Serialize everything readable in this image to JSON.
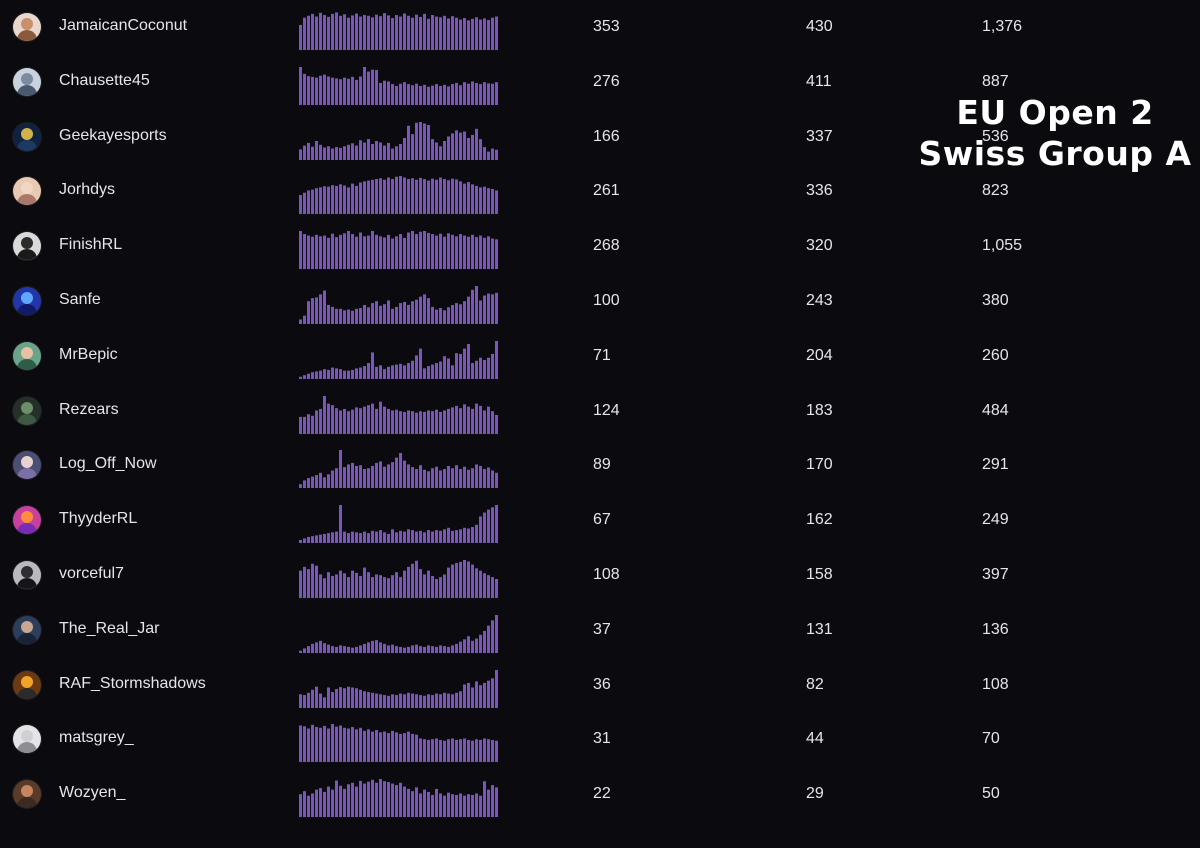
{
  "overlay": {
    "line1": "EU Open 2",
    "line2": "Swiss Group A"
  },
  "colors": {
    "background": "#0b0b0f",
    "bar": "#7b57bd",
    "text": "#e6e6ea"
  },
  "rows": [
    {
      "username": "JamaicanCoconut",
      "avatar": {
        "bg": "#e9d6cc",
        "face": "#c98f6a",
        "body": "#8a5a3c"
      },
      "col1": "353",
      "col2": "430",
      "col3": "1,376",
      "trend": [
        0.66,
        0.85,
        0.9,
        0.95,
        0.88,
        0.98,
        0.92,
        0.87,
        0.95,
        0.99,
        0.9,
        0.94,
        0.85,
        0.91,
        0.96,
        0.88,
        0.92,
        0.9,
        0.86,
        0.93,
        0.89,
        0.97,
        0.91,
        0.84,
        0.92,
        0.88,
        0.96,
        0.9,
        0.85,
        0.93,
        0.87,
        0.95,
        0.82,
        0.92,
        0.88,
        0.86,
        0.9,
        0.83,
        0.89,
        0.85,
        0.8,
        0.84,
        0.78,
        0.82,
        0.86,
        0.8,
        0.83,
        0.79,
        0.85,
        0.88
      ]
    },
    {
      "username": "Chausette45",
      "avatar": {
        "bg": "#c9d3e0",
        "face": "#7d8aa0",
        "body": "#4a5870"
      },
      "col1": "276",
      "col2": "411",
      "col3": "887",
      "trend": [
        1.0,
        0.82,
        0.76,
        0.74,
        0.72,
        0.77,
        0.8,
        0.75,
        0.72,
        0.7,
        0.68,
        0.72,
        0.69,
        0.74,
        0.66,
        0.75,
        1.0,
        0.88,
        0.93,
        0.92,
        0.58,
        0.64,
        0.62,
        0.55,
        0.5,
        0.56,
        0.6,
        0.55,
        0.52,
        0.56,
        0.5,
        0.53,
        0.48,
        0.51,
        0.55,
        0.5,
        0.53,
        0.49,
        0.55,
        0.58,
        0.52,
        0.6,
        0.56,
        0.62,
        0.58,
        0.55,
        0.6,
        0.57,
        0.56,
        0.6
      ]
    },
    {
      "username": "Geekayesports",
      "avatar": {
        "bg": "#0f2340",
        "face": "#d4b24a",
        "body": "#1e3a64"
      },
      "col1": "166",
      "col2": "337",
      "col3": "536",
      "trend": [
        0.28,
        0.38,
        0.45,
        0.35,
        0.5,
        0.4,
        0.33,
        0.36,
        0.3,
        0.34,
        0.32,
        0.36,
        0.4,
        0.44,
        0.38,
        0.52,
        0.46,
        0.55,
        0.42,
        0.5,
        0.46,
        0.38,
        0.45,
        0.3,
        0.36,
        0.42,
        0.58,
        0.9,
        0.68,
        0.98,
        1.0,
        0.96,
        0.92,
        0.55,
        0.46,
        0.36,
        0.5,
        0.62,
        0.7,
        0.78,
        0.72,
        0.75,
        0.58,
        0.66,
        0.82,
        0.55,
        0.34,
        0.22,
        0.3,
        0.27
      ]
    },
    {
      "username": "Jorhdys",
      "avatar": {
        "bg": "#e8c9b2",
        "face": "#f1d7c3",
        "body": "#a9786a"
      },
      "col1": "261",
      "col2": "336",
      "col3": "823",
      "trend": [
        0.5,
        0.56,
        0.62,
        0.64,
        0.68,
        0.7,
        0.73,
        0.72,
        0.76,
        0.74,
        0.78,
        0.75,
        0.7,
        0.8,
        0.74,
        0.83,
        0.86,
        0.88,
        0.9,
        0.92,
        0.94,
        0.9,
        0.96,
        0.92,
        0.98,
        1.0,
        0.96,
        0.92,
        0.94,
        0.9,
        0.95,
        0.92,
        0.88,
        0.93,
        0.9,
        0.96,
        0.92,
        0.89,
        0.93,
        0.91,
        0.86,
        0.8,
        0.84,
        0.78,
        0.74,
        0.7,
        0.72,
        0.68,
        0.66,
        0.62
      ]
    },
    {
      "username": "FinishRL",
      "avatar": {
        "bg": "#d9d9d9",
        "face": "#2b2b2b",
        "body": "#1a1a1a"
      },
      "col1": "268",
      "col2": "320",
      "col3": "1,055",
      "trend": [
        1.0,
        0.92,
        0.88,
        0.85,
        0.9,
        0.86,
        0.88,
        0.82,
        0.93,
        0.84,
        0.9,
        0.94,
        1.0,
        0.92,
        0.85,
        0.96,
        0.86,
        0.88,
        1.0,
        0.9,
        0.86,
        0.83,
        0.9,
        0.8,
        0.86,
        0.92,
        0.82,
        0.96,
        1.0,
        0.92,
        0.98,
        1.0,
        0.95,
        0.92,
        0.88,
        0.93,
        0.85,
        0.94,
        0.9,
        0.86,
        0.92,
        0.88,
        0.85,
        0.9,
        0.84,
        0.88,
        0.82,
        0.86,
        0.8,
        0.78
      ]
    },
    {
      "username": "Sanfe",
      "avatar": {
        "bg": "#2336a8",
        "face": "#5fa7ff",
        "body": "#111a66"
      },
      "col1": "100",
      "col2": "243",
      "col3": "380",
      "trend": [
        0.12,
        0.22,
        0.6,
        0.68,
        0.7,
        0.78,
        0.88,
        0.5,
        0.45,
        0.4,
        0.4,
        0.36,
        0.38,
        0.35,
        0.4,
        0.42,
        0.5,
        0.44,
        0.55,
        0.6,
        0.48,
        0.52,
        0.62,
        0.4,
        0.45,
        0.55,
        0.58,
        0.5,
        0.6,
        0.64,
        0.72,
        0.78,
        0.68,
        0.45,
        0.38,
        0.42,
        0.36,
        0.44,
        0.5,
        0.55,
        0.52,
        0.6,
        0.72,
        0.9,
        1.0,
        0.62,
        0.75,
        0.8,
        0.78,
        0.82
      ]
    },
    {
      "username": "MrBepic",
      "avatar": {
        "bg": "#6aa58a",
        "face": "#e6c1a3",
        "body": "#2f5c47"
      },
      "col1": "71",
      "col2": "204",
      "col3": "260",
      "trend": [
        0.06,
        0.1,
        0.14,
        0.18,
        0.2,
        0.22,
        0.26,
        0.24,
        0.3,
        0.28,
        0.26,
        0.22,
        0.22,
        0.24,
        0.28,
        0.3,
        0.34,
        0.42,
        0.7,
        0.32,
        0.36,
        0.26,
        0.32,
        0.36,
        0.38,
        0.4,
        0.36,
        0.42,
        0.48,
        0.62,
        0.8,
        0.28,
        0.34,
        0.38,
        0.42,
        0.46,
        0.6,
        0.54,
        0.36,
        0.68,
        0.66,
        0.8,
        0.92,
        0.42,
        0.48,
        0.56,
        0.5,
        0.56,
        0.66,
        1.0
      ]
    },
    {
      "username": "Rezears",
      "avatar": {
        "bg": "#243028",
        "face": "#6b8f6a",
        "body": "#3f5a42"
      },
      "col1": "124",
      "col2": "183",
      "col3": "484",
      "trend": [
        0.45,
        0.45,
        0.52,
        0.48,
        0.62,
        0.66,
        1.0,
        0.8,
        0.76,
        0.68,
        0.62,
        0.66,
        0.6,
        0.64,
        0.7,
        0.68,
        0.72,
        0.76,
        0.8,
        0.66,
        0.85,
        0.72,
        0.66,
        0.62,
        0.64,
        0.6,
        0.58,
        0.62,
        0.6,
        0.56,
        0.6,
        0.58,
        0.62,
        0.6,
        0.64,
        0.58,
        0.62,
        0.66,
        0.7,
        0.74,
        0.68,
        0.78,
        0.72,
        0.66,
        0.8,
        0.74,
        0.62,
        0.72,
        0.6,
        0.5
      ]
    },
    {
      "username": "Log_Off_Now",
      "avatar": {
        "bg": "#4a4f73",
        "face": "#e9d2d0",
        "body": "#7b6fa8"
      },
      "col1": "89",
      "col2": "170",
      "col3": "291",
      "trend": [
        0.1,
        0.2,
        0.26,
        0.3,
        0.34,
        0.4,
        0.28,
        0.36,
        0.46,
        0.52,
        1.0,
        0.55,
        0.62,
        0.66,
        0.58,
        0.6,
        0.5,
        0.52,
        0.58,
        0.66,
        0.7,
        0.56,
        0.62,
        0.68,
        0.8,
        0.92,
        0.72,
        0.62,
        0.55,
        0.5,
        0.6,
        0.48,
        0.44,
        0.52,
        0.56,
        0.46,
        0.5,
        0.58,
        0.52,
        0.6,
        0.5,
        0.56,
        0.48,
        0.52,
        0.62,
        0.58,
        0.5,
        0.54,
        0.46,
        0.4
      ]
    },
    {
      "username": "ThyyderRL",
      "avatar": {
        "bg": "#c7409b",
        "face": "#ff8b3d",
        "body": "#7a2bb5"
      },
      "col1": "67",
      "col2": "162",
      "col3": "249",
      "trend": [
        0.08,
        0.12,
        0.16,
        0.18,
        0.2,
        0.22,
        0.24,
        0.26,
        0.28,
        0.3,
        1.0,
        0.3,
        0.26,
        0.3,
        0.28,
        0.26,
        0.3,
        0.26,
        0.32,
        0.3,
        0.34,
        0.28,
        0.24,
        0.36,
        0.28,
        0.32,
        0.3,
        0.36,
        0.34,
        0.3,
        0.32,
        0.28,
        0.34,
        0.3,
        0.34,
        0.32,
        0.36,
        0.4,
        0.32,
        0.34,
        0.36,
        0.4,
        0.38,
        0.42,
        0.48,
        0.7,
        0.8,
        0.88,
        0.94,
        1.0
      ]
    },
    {
      "username": "vorceful7",
      "avatar": {
        "bg": "#b9b9bf",
        "face": "#2d2d33",
        "body": "#151519"
      },
      "col1": "108",
      "col2": "158",
      "col3": "397",
      "trend": [
        0.72,
        0.82,
        0.76,
        0.9,
        0.85,
        0.62,
        0.52,
        0.68,
        0.58,
        0.62,
        0.72,
        0.65,
        0.55,
        0.72,
        0.66,
        0.58,
        0.8,
        0.68,
        0.55,
        0.62,
        0.6,
        0.55,
        0.52,
        0.6,
        0.68,
        0.55,
        0.72,
        0.82,
        0.9,
        0.98,
        0.76,
        0.62,
        0.72,
        0.58,
        0.5,
        0.55,
        0.62,
        0.8,
        0.88,
        0.92,
        0.95,
        1.0,
        0.96,
        0.88,
        0.78,
        0.72,
        0.65,
        0.6,
        0.55,
        0.5
      ]
    },
    {
      "username": "The_Real_Jar",
      "avatar": {
        "bg": "#2d3e5c",
        "face": "#c9a690",
        "body": "#18233a"
      },
      "col1": "37",
      "col2": "131",
      "col3": "136",
      "trend": [
        0.06,
        0.12,
        0.18,
        0.24,
        0.28,
        0.32,
        0.26,
        0.22,
        0.18,
        0.16,
        0.2,
        0.18,
        0.16,
        0.14,
        0.16,
        0.2,
        0.24,
        0.28,
        0.32,
        0.34,
        0.28,
        0.24,
        0.2,
        0.22,
        0.18,
        0.16,
        0.14,
        0.16,
        0.2,
        0.22,
        0.18,
        0.16,
        0.2,
        0.18,
        0.16,
        0.2,
        0.18,
        0.16,
        0.2,
        0.24,
        0.3,
        0.36,
        0.44,
        0.32,
        0.38,
        0.48,
        0.58,
        0.72,
        0.86,
        1.0
      ]
    },
    {
      "username": "RAF_Stormshadows",
      "avatar": {
        "bg": "#6b3a12",
        "face": "#f0a52a",
        "body": "#2b2b2b"
      },
      "col1": "36",
      "col2": "82",
      "col3": "108",
      "trend": [
        0.36,
        0.34,
        0.4,
        0.48,
        0.56,
        0.38,
        0.28,
        0.54,
        0.42,
        0.5,
        0.55,
        0.52,
        0.56,
        0.54,
        0.52,
        0.48,
        0.44,
        0.42,
        0.4,
        0.38,
        0.36,
        0.34,
        0.32,
        0.36,
        0.34,
        0.38,
        0.36,
        0.4,
        0.38,
        0.36,
        0.34,
        0.32,
        0.36,
        0.34,
        0.38,
        0.36,
        0.4,
        0.38,
        0.36,
        0.4,
        0.44,
        0.62,
        0.66,
        0.54,
        0.7,
        0.6,
        0.66,
        0.72,
        0.78,
        1.0
      ]
    },
    {
      "username": "matsgrey_",
      "avatar": {
        "bg": "#e4e4e6",
        "face": "#cfcfd4",
        "body": "#8d8d94"
      },
      "col1": "31",
      "col2": "44",
      "col3": "70",
      "trend": [
        0.96,
        0.94,
        0.88,
        0.98,
        0.92,
        0.9,
        0.95,
        0.88,
        1.0,
        0.93,
        0.96,
        0.9,
        0.88,
        0.92,
        0.86,
        0.9,
        0.82,
        0.86,
        0.8,
        0.84,
        0.78,
        0.8,
        0.76,
        0.82,
        0.78,
        0.74,
        0.76,
        0.8,
        0.74,
        0.72,
        0.62,
        0.6,
        0.58,
        0.6,
        0.62,
        0.58,
        0.56,
        0.6,
        0.62,
        0.58,
        0.6,
        0.62,
        0.58,
        0.56,
        0.6,
        0.58,
        0.62,
        0.6,
        0.58,
        0.56
      ]
    },
    {
      "username": "Wozyen_",
      "avatar": {
        "bg": "#5a3b2a",
        "face": "#c7865d",
        "body": "#3a2a22"
      },
      "col1": "22",
      "col2": "29",
      "col3": "50",
      "trend": [
        0.6,
        0.68,
        0.56,
        0.62,
        0.72,
        0.76,
        0.66,
        0.8,
        0.72,
        0.96,
        0.82,
        0.74,
        0.86,
        0.9,
        0.8,
        0.95,
        0.88,
        0.93,
        0.98,
        0.9,
        1.0,
        0.94,
        0.92,
        0.88,
        0.84,
        0.9,
        0.8,
        0.74,
        0.68,
        0.78,
        0.62,
        0.72,
        0.66,
        0.58,
        0.74,
        0.62,
        0.56,
        0.64,
        0.6,
        0.58,
        0.62,
        0.56,
        0.6,
        0.58,
        0.62,
        0.56,
        0.94,
        0.72,
        0.84,
        0.78
      ]
    }
  ]
}
